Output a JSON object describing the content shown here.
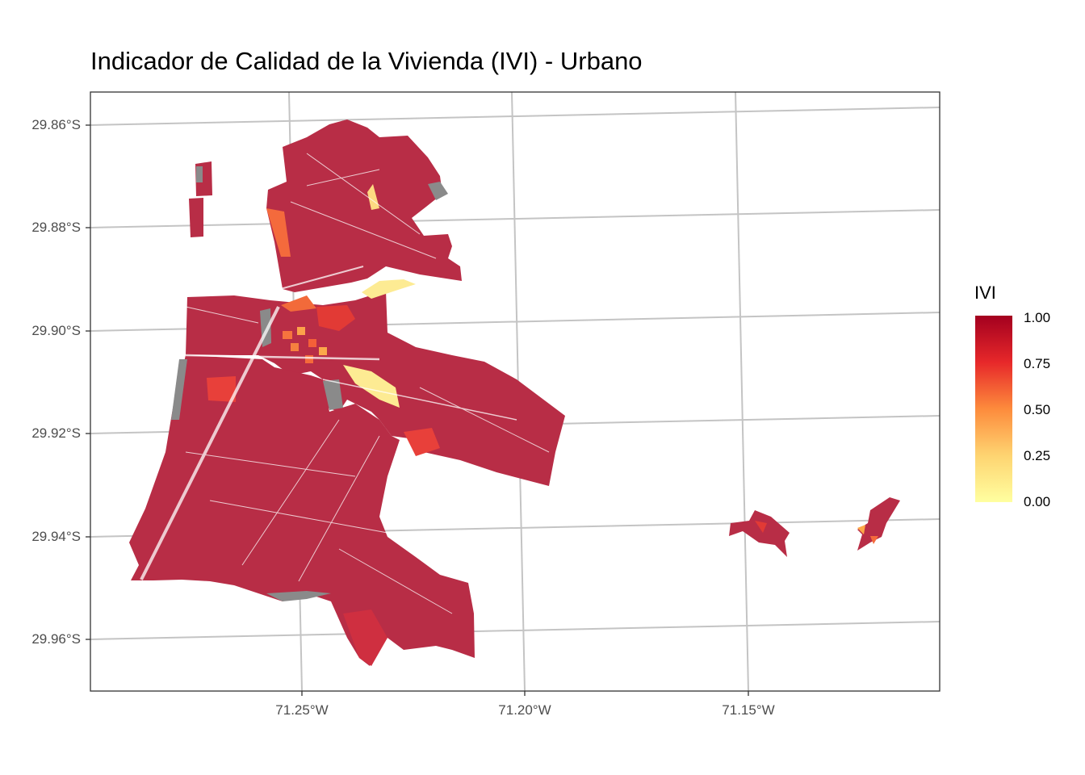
{
  "chart_data": {
    "type": "choropleth-map",
    "title": "Indicador de Calidad de la Vivienda (IVI) - Urbano",
    "y_ticks": [
      "29.86°S",
      "29.88°S",
      "29.90°S",
      "29.92°S",
      "29.94°S",
      "29.96°S"
    ],
    "x_ticks": [
      "71.25°W",
      "71.20°W",
      "71.15°W"
    ],
    "y_values": [
      -29.86,
      -29.88,
      -29.9,
      -29.92,
      -29.94,
      -29.96
    ],
    "x_values": [
      -71.25,
      -71.2,
      -71.15
    ],
    "grid": true,
    "legend": {
      "title": "IVI",
      "position": "right",
      "ticks": [
        "1.00",
        "0.75",
        "0.50",
        "0.25",
        "0.00"
      ],
      "range": [
        0,
        1
      ],
      "colormap": "YlOrRd"
    },
    "colors": {
      "dominant": "#b82d46",
      "high": "#d7262b",
      "mid": "#f45a36",
      "low": "#fdaa48",
      "lowest": "#ffef98",
      "na": "#8a8a8a"
    }
  }
}
